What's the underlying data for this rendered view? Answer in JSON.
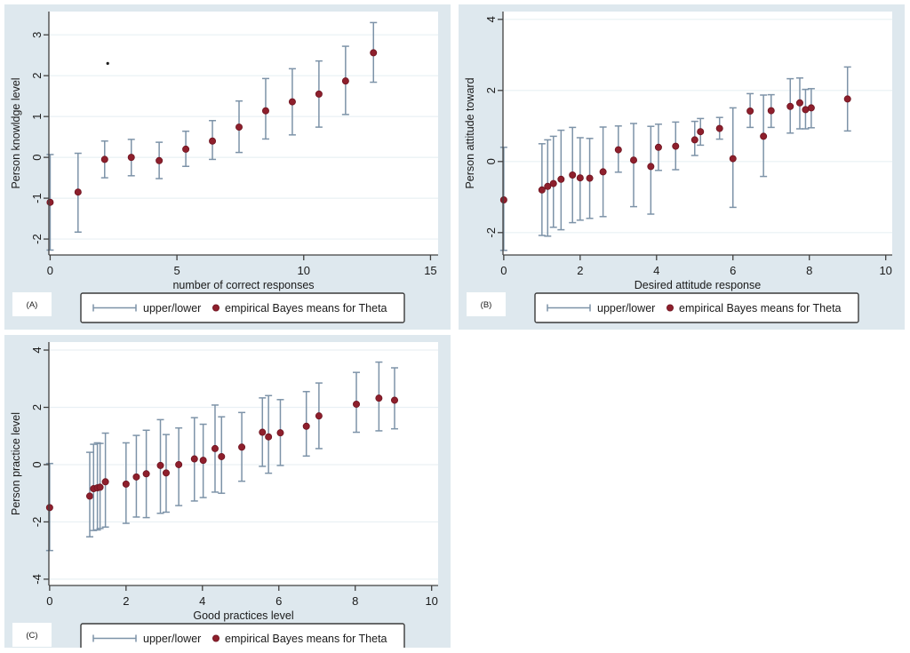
{
  "figure_title": "",
  "legend": {
    "upper_lower_label": "upper/lower",
    "means_label": "empirical Bayes means for Theta"
  },
  "colors": {
    "page_bg": "#ffffff",
    "panel_bg": "#dee8ee",
    "plot_bg": "#ffffff",
    "grid": "#e9f0f4",
    "axis": "#404040",
    "error_bar": "#7d93a8",
    "mean_dot": "#8e1f2c",
    "mean_dot_edge": "#6d1420",
    "text": "#1a1a1a",
    "legend_border": "#3a3a3a",
    "tag_bg": "#ffffff",
    "artifact": "#1c1c1c"
  },
  "chart_data": [
    {
      "id": "A",
      "tag": "(A)",
      "type": "scatter",
      "subtype": "error-bar-range-plot",
      "xlabel": "number of correct responses",
      "ylabel": "Person knowldge level",
      "xticks": [
        0,
        5,
        10,
        15
      ],
      "yticks": [
        -2,
        -1,
        0,
        1,
        2,
        3
      ],
      "xlim": [
        -0.05,
        15.3
      ],
      "ylim": [
        -2.39,
        3.57
      ],
      "grid": true,
      "legend_position": "bottom",
      "series": [
        {
          "name": "upper/lower",
          "role": "interval"
        },
        {
          "name": "empirical Bayes means for Theta",
          "role": "mean"
        }
      ],
      "point_format": [
        "x",
        "mean",
        "lower",
        "upper"
      ],
      "points": [
        [
          0.0,
          -1.1,
          -2.27,
          0.07
        ],
        [
          1.1,
          -0.85,
          -1.83,
          0.1
        ],
        [
          2.15,
          -0.05,
          -0.5,
          0.4
        ],
        [
          3.2,
          0.0,
          -0.45,
          0.44
        ],
        [
          4.3,
          -0.08,
          -0.52,
          0.37
        ],
        [
          5.35,
          0.2,
          -0.22,
          0.64
        ],
        [
          6.4,
          0.4,
          -0.05,
          0.9
        ],
        [
          7.45,
          0.74,
          0.12,
          1.38
        ],
        [
          8.5,
          1.14,
          0.45,
          1.93
        ],
        [
          9.55,
          1.36,
          0.55,
          2.17
        ],
        [
          10.6,
          1.55,
          0.74,
          2.36
        ],
        [
          11.65,
          1.87,
          1.05,
          2.72
        ],
        [
          12.75,
          2.56,
          1.84,
          3.3
        ]
      ],
      "artifact_dot": {
        "x": 2.27,
        "y": 2.3
      }
    },
    {
      "id": "B",
      "tag": "(B)",
      "type": "scatter",
      "subtype": "error-bar-range-plot",
      "xlabel": "Desired attitude response",
      "ylabel": "Person attitude toward",
      "xticks": [
        0,
        2,
        4,
        6,
        8,
        10
      ],
      "yticks": [
        -2,
        0,
        2,
        4
      ],
      "xlim": [
        -0.02,
        10.17
      ],
      "ylim": [
        -2.63,
        4.22
      ],
      "grid": true,
      "legend_position": "bottom",
      "series": [
        {
          "name": "upper/lower",
          "role": "interval"
        },
        {
          "name": "empirical Bayes means for Theta",
          "role": "mean"
        }
      ],
      "point_format": [
        "x",
        "mean",
        "lower",
        "upper"
      ],
      "points": [
        [
          0.0,
          -1.08,
          -2.5,
          0.4
        ],
        [
          1.0,
          -0.8,
          -2.08,
          0.5
        ],
        [
          1.15,
          -0.7,
          -2.1,
          0.61
        ],
        [
          1.3,
          -0.62,
          -1.85,
          0.71
        ],
        [
          1.5,
          -0.5,
          -1.92,
          0.88
        ],
        [
          1.8,
          -0.38,
          -1.72,
          0.96
        ],
        [
          2.0,
          -0.46,
          -1.65,
          0.67
        ],
        [
          2.25,
          -0.47,
          -1.6,
          0.65
        ],
        [
          2.6,
          -0.29,
          -1.55,
          0.97
        ],
        [
          3.0,
          0.33,
          -0.3,
          1.0
        ],
        [
          3.4,
          0.04,
          -1.27,
          1.07
        ],
        [
          3.85,
          -0.14,
          -1.48,
          0.99
        ],
        [
          4.05,
          0.4,
          -0.25,
          1.05
        ],
        [
          4.5,
          0.43,
          -0.23,
          1.11
        ],
        [
          5.0,
          0.61,
          0.17,
          1.13
        ],
        [
          5.15,
          0.84,
          0.46,
          1.21
        ],
        [
          5.65,
          0.93,
          0.63,
          1.24
        ],
        [
          6.0,
          0.08,
          -1.29,
          1.51
        ],
        [
          6.45,
          1.42,
          0.96,
          1.91
        ],
        [
          6.8,
          0.71,
          -0.42,
          1.87
        ],
        [
          7.0,
          1.43,
          0.96,
          1.88
        ],
        [
          7.5,
          1.55,
          0.8,
          2.33
        ],
        [
          7.75,
          1.65,
          0.92,
          2.35
        ],
        [
          7.9,
          1.46,
          0.92,
          2.03
        ],
        [
          8.05,
          1.51,
          0.95,
          2.05
        ],
        [
          9.0,
          1.76,
          0.86,
          2.66
        ]
      ]
    },
    {
      "id": "C",
      "tag": "(C)",
      "type": "scatter",
      "subtype": "error-bar-range-plot",
      "xlabel": "Good practices level",
      "ylabel": "Person practice level",
      "xticks": [
        0,
        2,
        4,
        6,
        8,
        10
      ],
      "yticks": [
        -4,
        -2,
        0,
        2,
        4
      ],
      "xlim": [
        -0.02,
        10.17
      ],
      "ylim": [
        -4.22,
        4.28
      ],
      "grid": true,
      "legend_position": "bottom",
      "series": [
        {
          "name": "upper/lower",
          "role": "interval"
        },
        {
          "name": "empirical Bayes means for Theta",
          "role": "mean"
        }
      ],
      "point_format": [
        "x",
        "mean",
        "lower",
        "upper"
      ],
      "points": [
        [
          0.0,
          -1.5,
          -3.0,
          0.04
        ],
        [
          1.05,
          -1.1,
          -2.52,
          0.43
        ],
        [
          1.15,
          -0.84,
          -2.3,
          0.71
        ],
        [
          1.25,
          -0.81,
          -2.28,
          0.76
        ],
        [
          1.32,
          -0.79,
          -2.23,
          0.74
        ],
        [
          1.46,
          -0.6,
          -2.18,
          1.1
        ],
        [
          2.0,
          -0.68,
          -2.05,
          0.76
        ],
        [
          2.27,
          -0.43,
          -1.83,
          1.02
        ],
        [
          2.53,
          -0.32,
          -1.85,
          1.2
        ],
        [
          2.9,
          -0.03,
          -1.7,
          1.57
        ],
        [
          3.05,
          -0.29,
          -1.66,
          1.05
        ],
        [
          3.38,
          0.0,
          -1.43,
          1.28
        ],
        [
          3.79,
          0.2,
          -1.27,
          1.64
        ],
        [
          4.02,
          0.15,
          -1.15,
          1.41
        ],
        [
          4.33,
          0.56,
          -0.96,
          2.08
        ],
        [
          4.5,
          0.28,
          -1.0,
          1.67
        ],
        [
          5.03,
          0.61,
          -0.58,
          1.82
        ],
        [
          5.57,
          1.13,
          -0.06,
          2.33
        ],
        [
          5.73,
          0.97,
          -0.3,
          2.41
        ],
        [
          6.04,
          1.11,
          -0.03,
          2.27
        ],
        [
          6.72,
          1.34,
          0.3,
          2.55
        ],
        [
          7.05,
          1.7,
          0.56,
          2.85
        ],
        [
          8.03,
          2.11,
          1.13,
          3.22
        ],
        [
          8.62,
          2.32,
          1.18,
          3.58
        ],
        [
          9.03,
          2.25,
          1.25,
          3.38
        ]
      ]
    }
  ]
}
